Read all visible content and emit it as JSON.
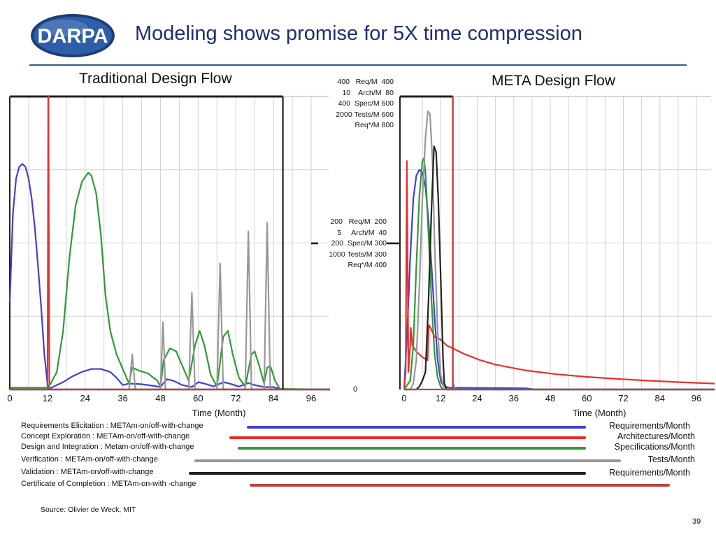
{
  "header": {
    "logo_text": "DARPA",
    "title": "Modeling shows promise for 5X time compression"
  },
  "chart_data": [
    {
      "type": "line",
      "title": "Traditional Design Flow",
      "xlabel": "Time (Month)",
      "x_ticks": [
        "0",
        "12",
        "24",
        "36",
        "48",
        "60",
        "72",
        "84",
        "96"
      ],
      "xlim": [
        0,
        102
      ],
      "ylim": [
        0,
        1
      ],
      "grid": true,
      "completion_month": 87,
      "series": [
        {
          "name": "Requirements Elicitation : METAm-on/off-with-change",
          "color": "#4040d8",
          "points": [
            [
              0,
              0.3
            ],
            [
              1,
              0.6
            ],
            [
              2,
              0.72
            ],
            [
              3,
              0.76
            ],
            [
              4,
              0.77
            ],
            [
              5,
              0.76
            ],
            [
              6,
              0.72
            ],
            [
              7,
              0.65
            ],
            [
              8,
              0.55
            ],
            [
              9,
              0.42
            ],
            [
              10,
              0.28
            ],
            [
              11,
              0.12
            ],
            [
              12.2,
              0.0
            ],
            [
              14,
              0.01
            ],
            [
              17,
              0.025
            ],
            [
              20,
              0.045
            ],
            [
              23,
              0.06
            ],
            [
              26,
              0.07
            ],
            [
              29,
              0.07
            ],
            [
              32,
              0.06
            ],
            [
              34,
              0.04
            ],
            [
              36,
              0.015
            ],
            [
              38,
              0.02
            ],
            [
              42,
              0.018
            ],
            [
              46,
              0.012
            ],
            [
              48,
              0.008
            ],
            [
              50,
              0.035
            ],
            [
              52,
              0.03
            ],
            [
              55,
              0.015
            ],
            [
              58,
              0.008
            ],
            [
              60,
              0.025
            ],
            [
              62,
              0.02
            ],
            [
              65,
              0.01
            ],
            [
              68,
              0.025
            ],
            [
              70,
              0.02
            ],
            [
              73,
              0.01
            ],
            [
              76,
              0.022
            ],
            [
              78,
              0.015
            ],
            [
              81,
              0.008
            ],
            [
              84,
              0.008
            ],
            [
              86,
              0.002
            ],
            [
              92,
              0.0
            ],
            [
              102,
              0.0
            ]
          ]
        },
        {
          "name": "Concept Exploration : METAm-on/off-with-change",
          "color": "#e8302a",
          "points": [
            [
              0,
              0.0
            ],
            [
              12,
              0.0
            ],
            [
              12.3,
              1.0
            ],
            [
              12.6,
              0.0
            ],
            [
              102,
              0.0
            ]
          ]
        },
        {
          "name": "Design and Integration : Metam-on/off-with-change",
          "color": "#2e9a36",
          "points": [
            [
              0,
              0.006
            ],
            [
              12,
              0.006
            ],
            [
              13,
              0.02
            ],
            [
              15,
              0.06
            ],
            [
              17,
              0.2
            ],
            [
              19,
              0.45
            ],
            [
              21,
              0.63
            ],
            [
              23,
              0.71
            ],
            [
              25,
              0.74
            ],
            [
              26,
              0.73
            ],
            [
              27.5,
              0.67
            ],
            [
              29,
              0.53
            ],
            [
              30.5,
              0.32
            ],
            [
              32,
              0.2
            ],
            [
              34,
              0.12
            ],
            [
              36,
              0.07
            ],
            [
              38,
              0.02
            ],
            [
              39,
              0.075
            ],
            [
              41,
              0.065
            ],
            [
              44,
              0.055
            ],
            [
              47,
              0.03
            ],
            [
              48,
              0.01
            ],
            [
              49,
              0.1
            ],
            [
              51,
              0.14
            ],
            [
              53,
              0.13
            ],
            [
              55,
              0.08
            ],
            [
              57,
              0.03
            ],
            [
              59,
              0.15
            ],
            [
              60.5,
              0.2
            ],
            [
              62,
              0.15
            ],
            [
              64,
              0.05
            ],
            [
              66,
              0.01
            ],
            [
              68,
              0.18
            ],
            [
              69.5,
              0.2
            ],
            [
              71,
              0.12
            ],
            [
              73,
              0.04
            ],
            [
              75,
              0.01
            ],
            [
              77,
              0.12
            ],
            [
              78,
              0.13
            ],
            [
              79.5,
              0.08
            ],
            [
              81,
              0.02
            ],
            [
              82,
              0.075
            ],
            [
              83,
              0.08
            ],
            [
              84.5,
              0.03
            ],
            [
              86,
              0.002
            ],
            [
              102,
              0.0
            ]
          ]
        },
        {
          "name": "Verification : METAm-on/off-with-change",
          "color": "#989898",
          "points": [
            [
              0,
              0.0
            ],
            [
              38,
              0.0
            ],
            [
              39,
              0.12
            ],
            [
              40,
              0.0
            ],
            [
              48,
              0.0
            ],
            [
              48.8,
              0.23
            ],
            [
              49.6,
              0.0
            ],
            [
              57,
              0.0
            ],
            [
              58,
              0.33
            ],
            [
              59,
              0.0
            ],
            [
              66,
              0.0
            ],
            [
              67,
              0.43
            ],
            [
              68,
              0.0
            ],
            [
              75,
              0.0
            ],
            [
              76,
              0.54
            ],
            [
              77,
              0.0
            ],
            [
              81,
              0.0
            ],
            [
              82,
              0.57
            ],
            [
              83,
              0.0
            ],
            [
              102,
              0.0
            ]
          ]
        },
        {
          "name": "Validation : METAm-on/off-with-change",
          "color": "#222222",
          "points": [
            [
              0,
              0.0
            ],
            [
              102,
              0.0
            ]
          ]
        },
        {
          "name": "Certificate of Completion : METAm-on-with -change",
          "color": "#c04040",
          "points": [
            [
              0,
              0.0
            ],
            [
              102,
              0.0
            ]
          ]
        }
      ]
    },
    {
      "type": "line",
      "title": "META Design Flow",
      "xlabel": "Time (Month)",
      "x_ticks": [
        "0",
        "12",
        "24",
        "36",
        "48",
        "60",
        "72",
        "84",
        "96"
      ],
      "xlim": [
        0,
        102
      ],
      "ylim": [
        0,
        1
      ],
      "grid": true,
      "completion_month": 16,
      "series": [
        {
          "name": "Requirements Elicitation : METAm-on/off-with-change",
          "color": "#4040d8",
          "points": [
            [
              0,
              0.0
            ],
            [
              1,
              0.2
            ],
            [
              2,
              0.45
            ],
            [
              3,
              0.65
            ],
            [
              4,
              0.73
            ],
            [
              5,
              0.75
            ],
            [
              6,
              0.74
            ],
            [
              7,
              0.69
            ],
            [
              8,
              0.58
            ],
            [
              9,
              0.42
            ],
            [
              10,
              0.25
            ],
            [
              11,
              0.1
            ],
            [
              12,
              0.03
            ],
            [
              13,
              0.01
            ],
            [
              15,
              0.006
            ],
            [
              40,
              0.004
            ],
            [
              43,
              0.0
            ],
            [
              102,
              0.0
            ]
          ]
        },
        {
          "name": "Concept Exploration : METAm-on/off-with-change",
          "color": "#e8302a",
          "points": [
            [
              0,
              0.0
            ],
            [
              0.5,
              0.06
            ],
            [
              0.9,
              0.78
            ],
            [
              1.4,
              0.06
            ],
            [
              2,
              0.15
            ],
            [
              2.2,
              0.21
            ],
            [
              2.7,
              0.15
            ],
            [
              4,
              0.13
            ],
            [
              6,
              0.11
            ],
            [
              7.7,
              0.1
            ],
            [
              8.1,
              0.22
            ],
            [
              8.7,
              0.21
            ],
            [
              10,
              0.18
            ],
            [
              12,
              0.17
            ],
            [
              14,
              0.15
            ],
            [
              17,
              0.135
            ],
            [
              20,
              0.12
            ],
            [
              25,
              0.1
            ],
            [
              30,
              0.085
            ],
            [
              40,
              0.065
            ],
            [
              50,
              0.052
            ],
            [
              60,
              0.043
            ],
            [
              70,
              0.036
            ],
            [
              80,
              0.03
            ],
            [
              90,
              0.025
            ],
            [
              102,
              0.02
            ]
          ]
        },
        {
          "name": "Design and Integration : Metam-on/off-with-change",
          "color": "#2e9a36",
          "points": [
            [
              0,
              0.0
            ],
            [
              2,
              0.03
            ],
            [
              3,
              0.15
            ],
            [
              4,
              0.42
            ],
            [
              5,
              0.66
            ],
            [
              6,
              0.78
            ],
            [
              6.5,
              0.79
            ],
            [
              7,
              0.74
            ],
            [
              8,
              0.53
            ],
            [
              9,
              0.3
            ],
            [
              10,
              0.12
            ],
            [
              11,
              0.04
            ],
            [
              12,
              0.01
            ],
            [
              13,
              0.0
            ],
            [
              102,
              0.0
            ]
          ]
        },
        {
          "name": "Verification : METAm-on/off-with-change",
          "color": "#989898",
          "points": [
            [
              0,
              0.0
            ],
            [
              2,
              0.0
            ],
            [
              3,
              0.02
            ],
            [
              4,
              0.1
            ],
            [
              5,
              0.35
            ],
            [
              6,
              0.65
            ],
            [
              7,
              0.86
            ],
            [
              7.8,
              0.95
            ],
            [
              8.5,
              0.94
            ],
            [
              9.3,
              0.78
            ],
            [
              10,
              0.5
            ],
            [
              11,
              0.2
            ],
            [
              12,
              0.05
            ],
            [
              13,
              0.01
            ],
            [
              14,
              0.0
            ],
            [
              16,
              0.0
            ],
            [
              16.3,
              0.018
            ],
            [
              16.6,
              0.0
            ],
            [
              102,
              0.0
            ]
          ]
        },
        {
          "name": "Validation : METAm-on/off-with-change",
          "color": "#222222",
          "points": [
            [
              0,
              0.0
            ],
            [
              4,
              0.0
            ],
            [
              5,
              0.01
            ],
            [
              6,
              0.03
            ],
            [
              7,
              0.06
            ],
            [
              8,
              0.3
            ],
            [
              9,
              0.62
            ],
            [
              9.8,
              0.83
            ],
            [
              10.5,
              0.81
            ],
            [
              11.2,
              0.65
            ],
            [
              12,
              0.38
            ],
            [
              12.8,
              0.1
            ],
            [
              13.2,
              0.02
            ],
            [
              14,
              0.0
            ],
            [
              102,
              0.0
            ]
          ]
        },
        {
          "name": "Certificate of Completion : METAm-on-with -change",
          "color": "#c04040",
          "points": [
            [
              0,
              0.0
            ],
            [
              102,
              0.0
            ]
          ]
        }
      ]
    }
  ],
  "scale_labels": {
    "top": "400   Req/M  400\n10    Arch/M  80\n400  Spec/M 600\n2000 Tests/M 600\nReq*/M 800",
    "middle": "200   Req/M  200\n5     Arch/M  40\n200  Spec/M 300\n1000 Tests/M 300\nReq*/M 400",
    "zero": "0"
  },
  "legend": [
    {
      "label": "Requirements Elicitation : METAm-on/off-with-change",
      "unit": "Requirements/Month",
      "color": "#4040d8"
    },
    {
      "label": "Concept Exploration : METAm-on/off-with-change",
      "unit": "Architectures/Month",
      "color": "#e8302a"
    },
    {
      "label": "Design and Integration : Metam-on/off-with-change",
      "unit": "Specifications/Month",
      "color": "#2e9a36"
    },
    {
      "label": "Verification : METAm-on/off-with-change",
      "unit": "Tests/Month",
      "color": "#989898"
    },
    {
      "label": "Validation : METAm-on/off-with-change",
      "unit": "Requirements/Month",
      "color": "#222222"
    },
    {
      "label": "Certificate of Completion : METAm-on-with -change",
      "unit": "",
      "color": "#c04040"
    }
  ],
  "footer": {
    "source": "Source: Olivier de Weck, MIT",
    "page_number": "39"
  }
}
